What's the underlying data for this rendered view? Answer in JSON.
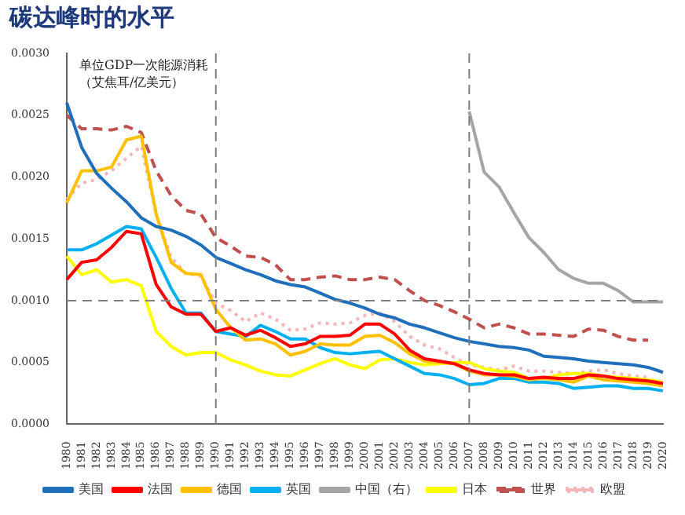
{
  "chart_data": {
    "type": "line",
    "title": "碳达峰时的水平",
    "annotations": [
      "单位GDP一次能源消耗（艾焦耳/亿美元）"
    ],
    "categories": [
      "1980",
      "1981",
      "1982",
      "1983",
      "1984",
      "1985",
      "1986",
      "1987",
      "1988",
      "1989",
      "1990",
      "1991",
      "1992",
      "1993",
      "1994",
      "1995",
      "1996",
      "1997",
      "1998",
      "1999",
      "2000",
      "2001",
      "2002",
      "2003",
      "2004",
      "2005",
      "2006",
      "2007",
      "2008",
      "2009",
      "2010",
      "2011",
      "2012",
      "2013",
      "2014",
      "2015",
      "2016",
      "2017",
      "2018",
      "2019",
      "2020"
    ],
    "ylim": [
      0,
      0.003
    ],
    "yticks": [
      {
        "value": 0,
        "label": "0.0000"
      },
      {
        "value": 0.0005,
        "label": "0.0005"
      },
      {
        "value": 0.001,
        "label": "0.0010"
      },
      {
        "value": 0.0015,
        "label": "0.0015"
      },
      {
        "value": 0.002,
        "label": "0.0020"
      },
      {
        "value": 0.0025,
        "label": "0.0025"
      },
      {
        "value": 0.003,
        "label": "0.0030"
      }
    ],
    "grid": false,
    "legend": "bottom",
    "marker": "none",
    "ref_lines": [
      {
        "axis": "x",
        "value": "1990",
        "color": "#7f7f7f",
        "line_style": "dashed"
      },
      {
        "axis": "x",
        "value": "2007",
        "color": "#7f7f7f",
        "line_style": "dashed"
      },
      {
        "axis": "y",
        "value": 0.001,
        "color": "#7f7f7f",
        "line_style": "dashed"
      }
    ],
    "series": [
      {
        "name": "美国",
        "color": "#1f6fba",
        "line_style": "solid",
        "values": [
          0.0026,
          0.00224,
          0.00203,
          0.00191,
          0.0018,
          0.00167,
          0.0016,
          0.00157,
          0.00152,
          0.00145,
          0.00135,
          0.0013,
          0.00125,
          0.00121,
          0.00116,
          0.00113,
          0.00111,
          0.00106,
          0.00101,
          0.00098,
          0.00094,
          0.00089,
          0.00086,
          0.00081,
          0.00078,
          0.00074,
          0.0007,
          0.00067,
          0.00065,
          0.00063,
          0.00062,
          0.0006,
          0.00055,
          0.00054,
          0.00053,
          0.00051,
          0.0005,
          0.00049,
          0.00048,
          0.00046,
          0.00042
        ]
      },
      {
        "name": "法国",
        "color": "#ff0000",
        "line_style": "solid",
        "values": [
          0.00117,
          0.00131,
          0.00133,
          0.00143,
          0.00156,
          0.00154,
          0.00113,
          0.00095,
          0.00089,
          0.00089,
          0.00075,
          0.00078,
          0.00072,
          0.00076,
          0.0007,
          0.00063,
          0.00065,
          0.00071,
          0.00071,
          0.00072,
          0.00081,
          0.00081,
          0.00073,
          0.0006,
          0.00053,
          0.00051,
          0.00049,
          0.00044,
          0.00041,
          0.0004,
          0.0004,
          0.00037,
          0.00038,
          0.00037,
          0.00037,
          0.0004,
          0.00039,
          0.00037,
          0.00036,
          0.00035,
          0.00033
        ]
      },
      {
        "name": "德国",
        "color": "#ffc000",
        "line_style": "solid",
        "values": [
          0.00179,
          0.00205,
          0.00205,
          0.00208,
          0.0023,
          0.00233,
          0.0017,
          0.00131,
          0.00122,
          0.00121,
          0.00093,
          0.00078,
          0.00068,
          0.00069,
          0.00065,
          0.00056,
          0.00059,
          0.00065,
          0.00064,
          0.00064,
          0.00071,
          0.00072,
          0.00066,
          0.00057,
          0.00051,
          0.0005,
          0.00049,
          0.00043,
          0.0004,
          0.0004,
          0.00039,
          0.00036,
          0.00037,
          0.00036,
          0.00034,
          0.00039,
          0.00036,
          0.00035,
          0.00034,
          0.00033,
          0.00031
        ]
      },
      {
        "name": "英国",
        "color": "#00b0f0",
        "line_style": "solid",
        "values": [
          0.00141,
          0.00141,
          0.00146,
          0.00153,
          0.0016,
          0.00158,
          0.00135,
          0.0011,
          0.0009,
          0.0009,
          0.00075,
          0.00073,
          0.00071,
          0.0008,
          0.00075,
          0.00069,
          0.00069,
          0.00062,
          0.00058,
          0.00057,
          0.00058,
          0.00059,
          0.00053,
          0.00047,
          0.00041,
          0.0004,
          0.00037,
          0.00032,
          0.00033,
          0.00037,
          0.00037,
          0.00034,
          0.00034,
          0.00033,
          0.00029,
          0.0003,
          0.00031,
          0.00031,
          0.00029,
          0.00029,
          0.00027
        ]
      },
      {
        "name": "中国（右）",
        "color": "#a5a5a5",
        "line_style": "solid",
        "values": [
          null,
          null,
          null,
          null,
          null,
          null,
          null,
          null,
          null,
          null,
          null,
          null,
          null,
          null,
          null,
          null,
          null,
          null,
          null,
          null,
          null,
          null,
          null,
          null,
          null,
          null,
          null,
          0.00253,
          0.00204,
          0.00192,
          0.00171,
          0.00151,
          0.00139,
          0.00125,
          0.00118,
          0.00114,
          0.00114,
          0.00108,
          0.00099,
          0.00099,
          0.00099
        ]
      },
      {
        "name": "日本",
        "color": "#ffff00",
        "line_style": "solid",
        "values": [
          0.00136,
          0.00121,
          0.00125,
          0.00115,
          0.00117,
          0.00112,
          0.00075,
          0.00063,
          0.00056,
          0.00058,
          0.00058,
          0.00052,
          0.00048,
          0.00043,
          0.0004,
          0.00039,
          0.00044,
          0.00049,
          0.00053,
          0.00048,
          0.00045,
          0.00052,
          0.00053,
          0.0005,
          0.00048,
          0.00049,
          0.0005,
          0.0005,
          0.00045,
          0.00043,
          0.00042,
          0.00037,
          0.00037,
          0.0004,
          0.00041,
          0.00041,
          0.00039,
          0.00038,
          0.00037,
          0.00036,
          0.00034
        ]
      },
      {
        "name": "世界",
        "color": "#c0504d",
        "line_style": "dashed",
        "values": [
          0.0025,
          0.00239,
          0.00239,
          0.00238,
          0.00241,
          0.00236,
          0.00205,
          0.00185,
          0.00173,
          0.0017,
          0.00151,
          0.00144,
          0.00136,
          0.00135,
          0.00129,
          0.00117,
          0.00117,
          0.00119,
          0.0012,
          0.00117,
          0.00117,
          0.00119,
          0.00117,
          0.00108,
          0.001,
          0.00096,
          0.00091,
          0.00085,
          0.00078,
          0.00081,
          0.00078,
          0.00073,
          0.00073,
          0.00072,
          0.00071,
          0.00077,
          0.00076,
          0.00071,
          0.00068,
          0.00068,
          null
        ]
      },
      {
        "name": "欧盟",
        "color": "#f4b6b6",
        "line_style": "dotted",
        "values": [
          0.00182,
          0.00195,
          0.00198,
          0.00205,
          0.00215,
          0.00225,
          0.0017,
          0.00135,
          0.00122,
          0.0012,
          0.00098,
          0.00092,
          0.00083,
          0.0009,
          0.00085,
          0.00076,
          0.00077,
          0.00082,
          0.00081,
          0.00082,
          0.00088,
          0.0009,
          0.00083,
          0.00071,
          0.00064,
          0.00061,
          0.00054,
          0.00048,
          0.00046,
          0.00044,
          0.00047,
          0.00043,
          0.00043,
          0.00042,
          0.00041,
          0.00043,
          0.00044,
          0.00041,
          0.00039,
          0.00038,
          null
        ]
      }
    ]
  }
}
